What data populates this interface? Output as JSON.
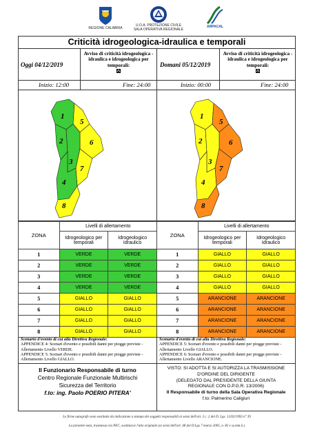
{
  "logos": {
    "regione": "REGIONE CALABRIA",
    "protezione_civile": "U.O.A. PROTEZIONE CIVILE\nSALA OPERATIVA REGIONALE",
    "arpacal": "ARPACAL"
  },
  "title": "Criticità idrogeologica-idraulica e temporali",
  "left": {
    "date": "Oggi 04/12/2019",
    "avviso": "Avviso di criticità idrogeologica - idraulica e idrogeologica per temporali:",
    "start": "Inizio: 12:00",
    "end": "Fine: 24:00"
  },
  "right": {
    "date": "Domani 05/12/2019",
    "avviso": "Avviso di criticità idrogeologica - idraulica e idrogeologica per temporali:",
    "start": "Inizio: 00:00",
    "end": "Fine: 24:00"
  },
  "colors": {
    "verde": "#3dcc3a",
    "giallo": "#ffff1a",
    "arancione": "#ff8c1a"
  },
  "table": {
    "zona_header": "ZONA",
    "levels_header": "Livelli di allertamento",
    "col1": "Idrogeologico per temporali",
    "col2": "Idrogeologico Idraulico",
    "zones": [
      "1",
      "2",
      "3",
      "4",
      "5",
      "6",
      "7",
      "8"
    ],
    "left_levels": [
      [
        "VERDE",
        "VERDE"
      ],
      [
        "VERDE",
        "VERDE"
      ],
      [
        "VERDE",
        "VERDE"
      ],
      [
        "VERDE",
        "VERDE"
      ],
      [
        "GIALLO",
        "GIALLO"
      ],
      [
        "GIALLO",
        "GIALLO"
      ],
      [
        "GIALLO",
        "GIALLO"
      ],
      [
        "GIALLO",
        "GIALLO"
      ]
    ],
    "right_levels": [
      [
        "GIALLO",
        "GIALLO"
      ],
      [
        "GIALLO",
        "GIALLO"
      ],
      [
        "GIALLO",
        "GIALLO"
      ],
      [
        "GIALLO",
        "GIALLO"
      ],
      [
        "ARANCIONE",
        "ARANCIONE"
      ],
      [
        "ARANCIONE",
        "ARANCIONE"
      ],
      [
        "ARANCIONE",
        "ARANCIONE"
      ],
      [
        "ARANCIONE",
        "ARANCIONE"
      ]
    ]
  },
  "scenario_left": {
    "heading": "Scenario d'evento di cui alla Direttiva Regionale:",
    "line1": "APPENDICE 4: Scenari d'evento e possibili danni per piogge previste - Allertamento Livello VERDE.",
    "line2": "APPENDICE 5: Scenari d'evento e possibili danni per piogge previste - Allertamento Livello GIALLO."
  },
  "scenario_right": {
    "heading": "Scenario d'evento di cui alla Direttiva Regionale:",
    "line1": "APPENDICE 5: Scenari d'evento e possibili danni per piogge previste - Allertamento Livello GIALLO.",
    "line2": "APPENDICE 6: Scenari d'evento e possibili danni per piogge previste - Allertamento Livello ARANCIONE."
  },
  "sign_left": {
    "l1": "Il Funzionario Responsabile di turno",
    "l2": "Centro Regionale Funzionale Multirischi",
    "l3": "Sicurezza del Territorio",
    "l4": "f.to: ing. Paolo POERIO PITERA'"
  },
  "sign_right": {
    "l1": "VISTO: SI ADOTTA E SI AUTORIZZA LA TRASMISSIONE",
    "l2": "D'ORDINE DEL DIRIGENTE",
    "l3": "(DELEGATO DAL PRESIDENTE DELLA GIUNTA",
    "l4": "REGIONALE CON D.P.G.R. 13/2006)",
    "l5": "Il Responsabile di turno della Sala Operativa Regionale",
    "l6": "f.to: Palmerino Caligiuri"
  },
  "footer": {
    "l1": "Le firme autografe sono sostituite da indicazione a stampa dei soggetti responsabili ai sensi dell'art. 3 c. 2 del D. Lgs. 12/02/1993 n° 39",
    "l2": "La presente nota, trasmessa via PEC, sostituisce l'atto originale (ai sensi dell'art. 48 del D.Lgs 7 marzo 2005, n. 82 e ss.mm.ii.)"
  }
}
